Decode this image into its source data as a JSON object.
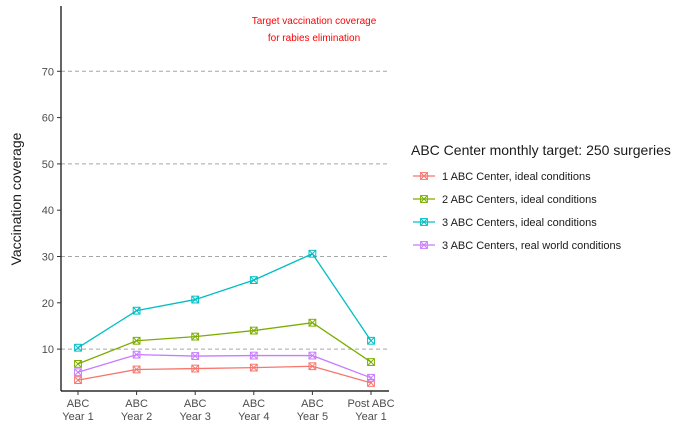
{
  "chart_data": {
    "type": "line",
    "categories": [
      [
        "ABC",
        "Year 1"
      ],
      [
        "ABC",
        "Year 2"
      ],
      [
        "ABC",
        "Year 3"
      ],
      [
        "ABC",
        "Year 4"
      ],
      [
        "ABC",
        "Year 5"
      ],
      [
        "Post ABC",
        "Year 1"
      ]
    ],
    "ylabel": "Vaccination coverage",
    "ylim": [
      0,
      77
    ],
    "yticks": [
      10,
      20,
      30,
      40,
      50,
      60,
      70
    ],
    "grid_lines": [
      10,
      30,
      50,
      70
    ],
    "legend": {
      "title": "ABC Center monthly target: 250 surgeries",
      "position": "right"
    },
    "annotation": {
      "lines": [
        "Target vaccination coverage",
        "for rabies elimination"
      ],
      "color": "#ff0000"
    },
    "series": [
      {
        "name": "1 ABC Center, ideal conditions",
        "color": "#f8766d",
        "values": [
          3.3,
          5.6,
          5.8,
          6.0,
          6.3,
          2.7
        ]
      },
      {
        "name": "2 ABC Centers, ideal conditions",
        "color": "#7cae00",
        "values": [
          6.8,
          11.8,
          12.7,
          14.0,
          15.7,
          7.2
        ]
      },
      {
        "name": "3 ABC Centers, ideal conditions",
        "color": "#00bfc4",
        "values": [
          10.3,
          18.3,
          20.7,
          24.9,
          30.6,
          11.8
        ]
      },
      {
        "name": "3 ABC Centers, real world conditions",
        "color": "#c77cff",
        "values": [
          5.0,
          8.8,
          8.5,
          8.6,
          8.6,
          3.8
        ]
      }
    ]
  }
}
